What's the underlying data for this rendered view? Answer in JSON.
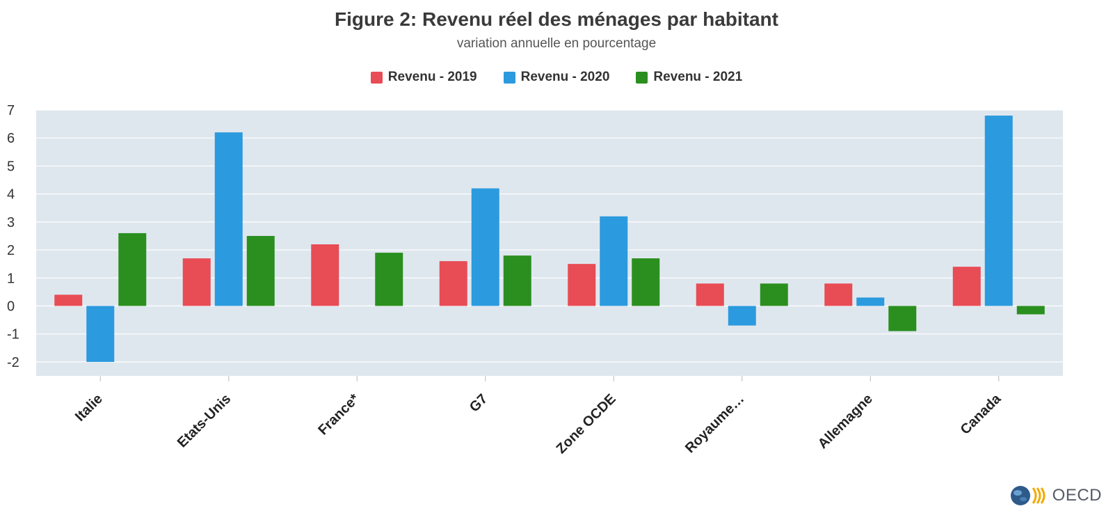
{
  "header": {
    "title": "Figure 2: Revenu réel des ménages par habitant",
    "subtitle": "variation annuelle en pourcentage"
  },
  "chart_data": {
    "type": "bar",
    "title": "Figure 2: Revenu réel des ménages par habitant",
    "subtitle": "variation annuelle en pourcentage",
    "xlabel": "",
    "ylabel": "",
    "categories": [
      "Italie",
      "Etats-Unis",
      "France*",
      "G7",
      "Zone OCDE",
      "Royaume…",
      "Allemagne",
      "Canada"
    ],
    "series": [
      {
        "name": "Revenu - 2019",
        "color": "#e84c55",
        "values": [
          0.4,
          1.7,
          2.2,
          1.6,
          1.5,
          0.8,
          0.8,
          1.4
        ]
      },
      {
        "name": "Revenu - 2020",
        "color": "#2b9ade",
        "values": [
          -2.0,
          6.2,
          null,
          4.2,
          3.2,
          -0.7,
          0.3,
          6.8
        ]
      },
      {
        "name": "Revenu - 2021",
        "color": "#2a8f1f",
        "values": [
          2.6,
          2.5,
          1.9,
          1.8,
          1.7,
          0.8,
          -0.9,
          -0.3
        ]
      }
    ],
    "ylim": [
      -2.5,
      7
    ],
    "yticks": [
      -2,
      -1,
      0,
      1,
      2,
      3,
      4,
      5,
      6,
      7
    ],
    "grid": true,
    "legend_position": "top-center",
    "plot_background": "#dfe7ee"
  },
  "logo": {
    "text": "OECD"
  }
}
